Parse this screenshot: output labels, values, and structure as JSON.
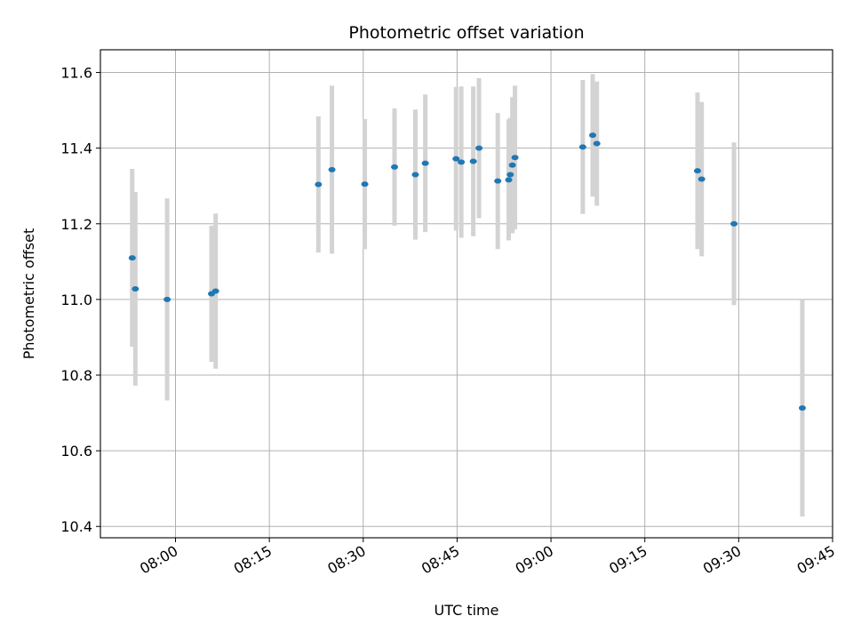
{
  "chart_data": {
    "type": "scatter",
    "title": "Photometric offset variation",
    "xlabel": "UTC time",
    "ylabel": "Photometric offset",
    "x_axis_kind": "time",
    "xlim": [
      "07:48",
      "09:45"
    ],
    "ylim": [
      10.37,
      11.66
    ],
    "xticks": [
      "08:00",
      "08:15",
      "08:30",
      "08:45",
      "09:00",
      "09:15",
      "09:30",
      "09:45"
    ],
    "yticks": [
      10.4,
      10.6,
      10.8,
      11.0,
      11.2,
      11.4,
      11.6
    ],
    "ytick_labels": [
      "10.4",
      "10.6",
      "10.8",
      "11.0",
      "11.2",
      "11.4",
      "11.6"
    ],
    "grid": true,
    "colors": {
      "point": "#1f77b4",
      "errorbar": "#d3d3d3",
      "grid": "#b0b0b0"
    },
    "points": [
      {
        "t": "07:53:05",
        "y": 11.11,
        "err": 0.235
      },
      {
        "t": "07:53:35",
        "y": 11.028,
        "err": 0.256
      },
      {
        "t": "07:58:40",
        "y": 11.0,
        "err": 0.267
      },
      {
        "t": "08:05:45",
        "y": 11.015,
        "err": 0.18
      },
      {
        "t": "08:06:25",
        "y": 11.022,
        "err": 0.205
      },
      {
        "t": "08:22:50",
        "y": 11.304,
        "err": 0.18
      },
      {
        "t": "08:25:00",
        "y": 11.343,
        "err": 0.222
      },
      {
        "t": "08:30:15",
        "y": 11.305,
        "err": 0.172
      },
      {
        "t": "08:35:00",
        "y": 11.35,
        "err": 0.155
      },
      {
        "t": "08:38:20",
        "y": 11.33,
        "err": 0.172
      },
      {
        "t": "08:39:55",
        "y": 11.36,
        "err": 0.182
      },
      {
        "t": "08:44:50",
        "y": 11.372,
        "err": 0.19
      },
      {
        "t": "08:45:40",
        "y": 11.363,
        "err": 0.2
      },
      {
        "t": "08:47:35",
        "y": 11.365,
        "err": 0.198
      },
      {
        "t": "08:48:30",
        "y": 11.4,
        "err": 0.185
      },
      {
        "t": "08:51:30",
        "y": 11.313,
        "err": 0.18
      },
      {
        "t": "08:53:15",
        "y": 11.316,
        "err": 0.16
      },
      {
        "t": "08:53:30",
        "y": 11.33,
        "err": 0.15
      },
      {
        "t": "08:53:50",
        "y": 11.355,
        "err": 0.18
      },
      {
        "t": "08:54:15",
        "y": 11.375,
        "err": 0.19
      },
      {
        "t": "09:05:05",
        "y": 11.403,
        "err": 0.177
      },
      {
        "t": "09:06:40",
        "y": 11.434,
        "err": 0.162
      },
      {
        "t": "09:07:20",
        "y": 11.412,
        "err": 0.164
      },
      {
        "t": "09:23:25",
        "y": 11.34,
        "err": 0.207
      },
      {
        "t": "09:24:05",
        "y": 11.318,
        "err": 0.204
      },
      {
        "t": "09:29:15",
        "y": 11.2,
        "err": 0.215
      },
      {
        "t": "09:40:10",
        "y": 10.713,
        "err": 0.287
      }
    ]
  }
}
